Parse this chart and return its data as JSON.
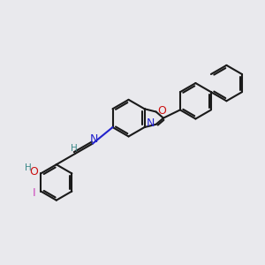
{
  "bg_color": "#e9e9ed",
  "bond_color": "#1a1a1a",
  "bond_width": 1.5,
  "N_color": "#2222cc",
  "O_color": "#cc1111",
  "I_color": "#cc44bb",
  "teal_color": "#3a8888",
  "font_size_atom": 9,
  "font_size_h": 7.5,
  "figsize": [
    3.0,
    3.0
  ],
  "dpi": 100,
  "xlim": [
    0,
    10
  ],
  "ylim": [
    0,
    10
  ]
}
